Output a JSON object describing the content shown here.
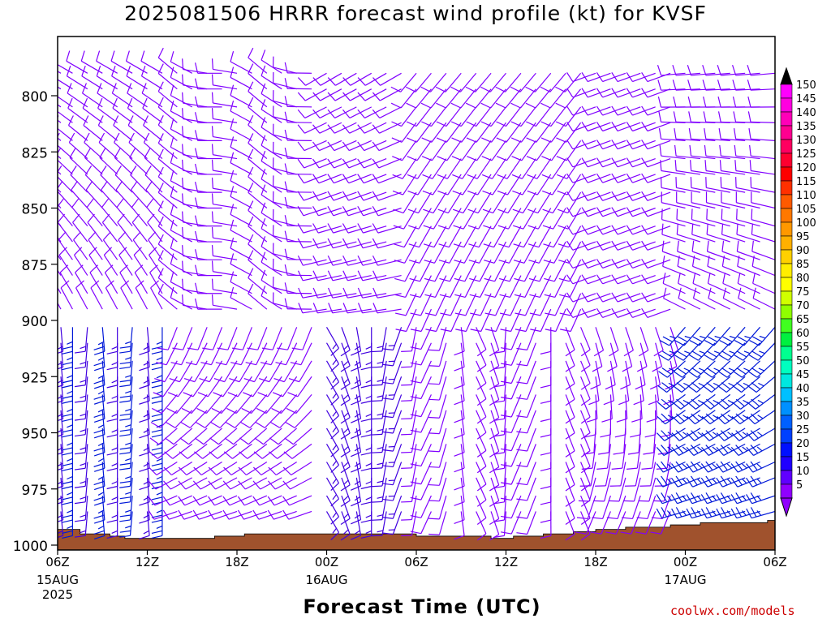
{
  "chart_data": {
    "type": "wind-barb-time-height",
    "title": "2025081506 HRRR forecast wind profile (kt) for KVSF",
    "xlabel": "Forecast Time (UTC)",
    "ylabel": "",
    "credit": "coolwx.com/models",
    "x_ticks": [
      {
        "label": "06Z",
        "sub": [
          "15AUG",
          "2025"
        ],
        "hour": 0
      },
      {
        "label": "12Z",
        "sub": [],
        "hour": 6
      },
      {
        "label": "18Z",
        "sub": [],
        "hour": 12
      },
      {
        "label": "00Z",
        "sub": [
          "16AUG"
        ],
        "hour": 18
      },
      {
        "label": "06Z",
        "sub": [],
        "hour": 24
      },
      {
        "label": "12Z",
        "sub": [],
        "hour": 30
      },
      {
        "label": "18Z",
        "sub": [],
        "hour": 36
      },
      {
        "label": "00Z",
        "sub": [
          "17AUG"
        ],
        "hour": 42
      },
      {
        "label": "06Z",
        "sub": [],
        "hour": 48
      }
    ],
    "xlim": [
      0,
      48
    ],
    "ylim": [
      775,
      1000
    ],
    "y_ticks": [
      {
        "label": "800",
        "value": 800
      },
      {
        "label": "825",
        "value": 825
      },
      {
        "label": "850",
        "value": 850
      },
      {
        "label": "875",
        "value": 875
      },
      {
        "label": "900",
        "value": 900
      },
      {
        "label": "925",
        "value": 925
      },
      {
        "label": "950",
        "value": 950
      },
      {
        "label": "975",
        "value": 975
      },
      {
        "label": "1000",
        "value": 1000
      }
    ],
    "surface_pressure": [
      [
        0,
        993
      ],
      [
        1.5,
        995
      ],
      [
        3.5,
        996
      ],
      [
        4.5,
        997
      ],
      [
        10.5,
        996
      ],
      [
        12.5,
        995
      ],
      [
        18,
        995
      ],
      [
        24,
        996
      ],
      [
        27.5,
        996
      ],
      [
        29,
        997
      ],
      [
        30.5,
        996
      ],
      [
        32.5,
        995
      ],
      [
        34.5,
        994
      ],
      [
        36,
        993
      ],
      [
        38,
        992
      ],
      [
        41,
        991
      ],
      [
        43,
        990
      ],
      [
        47.5,
        989
      ],
      [
        48,
        988
      ]
    ],
    "barb_levels": [
      790,
      797,
      805,
      812,
      820,
      828,
      835,
      843,
      850,
      858,
      865,
      873,
      880,
      888,
      895,
      903,
      910,
      918,
      925,
      933,
      940,
      948,
      955,
      963,
      970,
      978,
      985
    ],
    "barb_hours_count": 48,
    "colorbar": {
      "labels": [
        "150",
        "145",
        "140",
        "135",
        "130",
        "125",
        "120",
        "115",
        "110",
        "105",
        "100",
        "95",
        "90",
        "85",
        "80",
        "75",
        "70",
        "65",
        "60",
        "55",
        "50",
        "45",
        "40",
        "35",
        "30",
        "25",
        "20",
        "15",
        "10",
        "5"
      ],
      "colors": [
        "#ff00ff",
        "#ff00e0",
        "#ff00b8",
        "#ff0090",
        "#ff0060",
        "#ff0030",
        "#ff0000",
        "#ff3000",
        "#ff5a00",
        "#ff7800",
        "#ff9800",
        "#ffb000",
        "#ffd000",
        "#ffee00",
        "#ffff00",
        "#d0ff00",
        "#90ff00",
        "#40ff20",
        "#00f040",
        "#00ff90",
        "#00ffc0",
        "#00e8e0",
        "#00c0ff",
        "#0090ff",
        "#0060ff",
        "#0040ff",
        "#0010ff",
        "#2000ff",
        "#6000ff",
        "#9000ff"
      ],
      "top_cap": "#000000",
      "bottom_cap": "#9000ff"
    },
    "barb_colors": {
      "light": "#8000ff",
      "moderate": "#4000e0",
      "strong": "#0018d8"
    }
  }
}
